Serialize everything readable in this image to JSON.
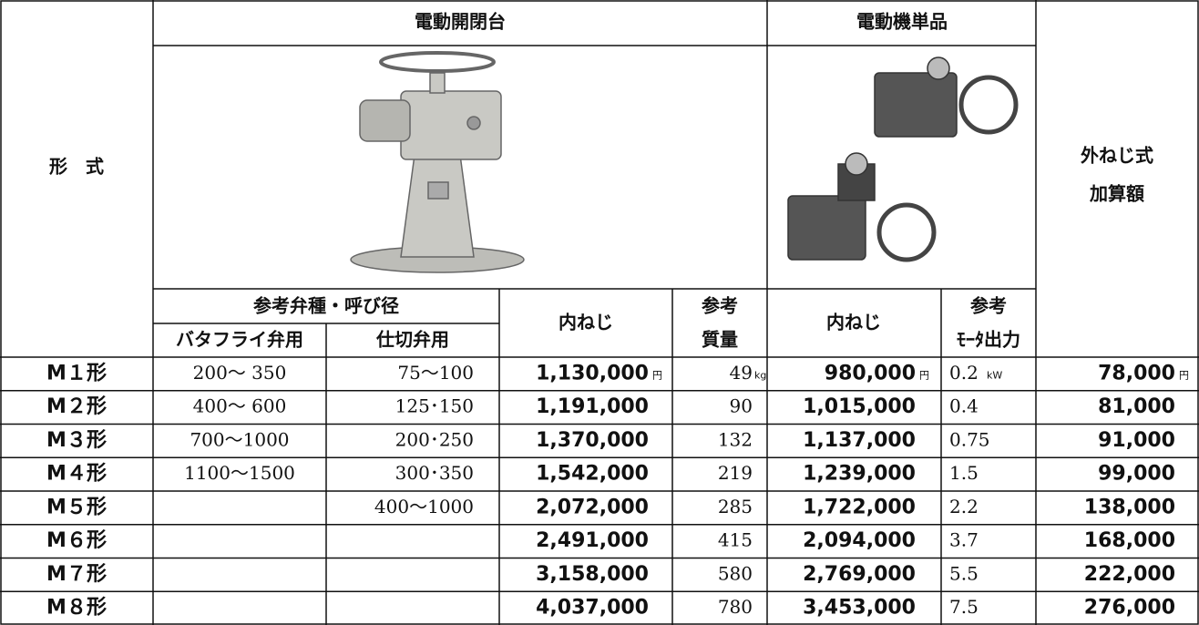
{
  "headers": {
    "model": "形　式",
    "actuator": "電動開閉台",
    "motor": "電動機単品",
    "external_1": "外ねじ式",
    "external_2": "加算額",
    "valve_ref": "参考弁種・呼び径",
    "butterfly": "バタフライ弁用",
    "gate": "仕切弁用",
    "inner_thread_1": "内ねじ",
    "weight_1": "参考",
    "weight_2": "質量",
    "inner_thread_2": "内ねじ",
    "output_1": "参考",
    "output_2": "ﾓｰﾀ出力"
  },
  "units": {
    "yen": "円",
    "kg": "kg",
    "kw": "kW"
  },
  "rows": [
    [
      "M１形",
      "200〜 350",
      "75〜100",
      "1,130,000",
      "49",
      "980,000",
      "0.2",
      "78,000"
    ],
    [
      "M２形",
      "400〜 600",
      "125･150",
      "1,191,000",
      "90",
      "1,015,000",
      "0.4",
      "81,000"
    ],
    [
      "M３形",
      "700〜1000",
      "200･250",
      "1,370,000",
      "132",
      "1,137,000",
      "0.75",
      "91,000"
    ],
    [
      "M４形",
      "1100〜1500",
      "300･350",
      "1,542,000",
      "219",
      "1,239,000",
      "1.5",
      "99,000"
    ],
    [
      "M５形",
      null,
      "400〜1000",
      "2,072,000",
      "285",
      "1,722,000",
      "2.2",
      "138,000"
    ],
    [
      "M６形",
      null,
      null,
      "2,491,000",
      "415",
      "2,094,000",
      "3.7",
      "168,000"
    ],
    [
      "M７形",
      null,
      null,
      "3,158,000",
      "580",
      "2,769,000",
      "5.5",
      "222,000"
    ],
    [
      "M８形",
      null,
      null,
      "4,037,000",
      "780",
      "3,453,000",
      "7.5",
      "276,000"
    ]
  ]
}
